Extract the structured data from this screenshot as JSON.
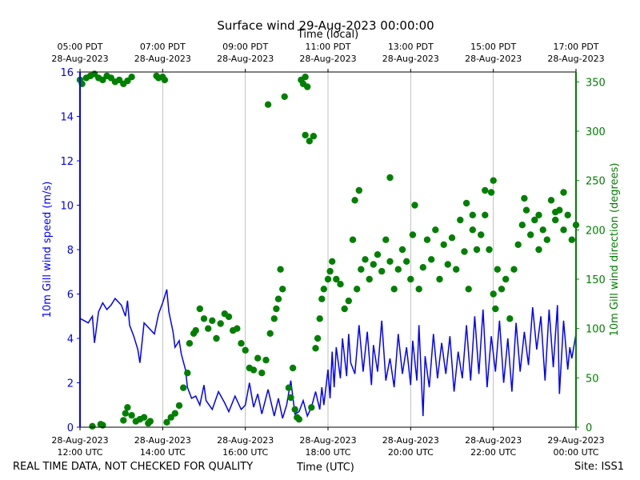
{
  "chart_data": {
    "type": "line+scatter",
    "title": "Surface wind 29-Aug-2023 00:00:00",
    "top_axis": {
      "label": "Time (local)",
      "ticks": [
        {
          "time": "05:00 PDT",
          "date": "28-Aug-2023"
        },
        {
          "time": "07:00 PDT",
          "date": "28-Aug-2023"
        },
        {
          "time": "09:00 PDT",
          "date": "28-Aug-2023"
        },
        {
          "time": "11:00 PDT",
          "date": "28-Aug-2023"
        },
        {
          "time": "13:00 PDT",
          "date": "28-Aug-2023"
        },
        {
          "time": "15:00 PDT",
          "date": "28-Aug-2023"
        },
        {
          "time": "17:00 PDT",
          "date": "28-Aug-2023"
        }
      ]
    },
    "bottom_axis": {
      "label": "Time (UTC)",
      "xlim_hours_utc": [
        12,
        24
      ],
      "ticks": [
        {
          "date": "28-Aug-2023",
          "time": "12:00 UTC"
        },
        {
          "date": "28-Aug-2023",
          "time": "14:00 UTC"
        },
        {
          "date": "28-Aug-2023",
          "time": "16:00 UTC"
        },
        {
          "date": "28-Aug-2023",
          "time": "18:00 UTC"
        },
        {
          "date": "28-Aug-2023",
          "time": "20:00 UTC"
        },
        {
          "date": "28-Aug-2023",
          "time": "22:00 UTC"
        },
        {
          "date": "29-Aug-2023",
          "time": "00:00 UTC"
        }
      ]
    },
    "left_axis": {
      "label": "10m Gill wind speed (m/s)",
      "ylim": [
        0,
        16
      ],
      "ticks": [
        0,
        2,
        4,
        6,
        8,
        10,
        12,
        14,
        16
      ],
      "color": "#0000ff"
    },
    "right_axis": {
      "label": "10m Gill wind direction (degrees)",
      "ylim": [
        0,
        360
      ],
      "ticks": [
        0,
        50,
        100,
        150,
        200,
        250,
        300,
        350
      ],
      "color": "#008000"
    },
    "grid": "vertical",
    "series": [
      {
        "name": "wind speed",
        "axis": "left",
        "style": "line",
        "points": [
          [
            12.0,
            4.9
          ],
          [
            12.1,
            4.8
          ],
          [
            12.2,
            4.7
          ],
          [
            12.3,
            5.0
          ],
          [
            12.35,
            3.8
          ],
          [
            12.45,
            5.2
          ],
          [
            12.55,
            5.6
          ],
          [
            12.65,
            5.3
          ],
          [
            12.75,
            5.5
          ],
          [
            12.85,
            5.8
          ],
          [
            13.0,
            5.5
          ],
          [
            13.1,
            5.0
          ],
          [
            13.15,
            5.7
          ],
          [
            13.2,
            4.6
          ],
          [
            13.3,
            4.1
          ],
          [
            13.4,
            3.5
          ],
          [
            13.45,
            2.9
          ],
          [
            13.55,
            4.7
          ],
          [
            13.7,
            4.4
          ],
          [
            13.8,
            4.2
          ],
          [
            13.9,
            5.1
          ],
          [
            14.0,
            5.6
          ],
          [
            14.1,
            6.2
          ],
          [
            14.15,
            5.2
          ],
          [
            14.25,
            4.3
          ],
          [
            14.3,
            3.6
          ],
          [
            14.4,
            3.9
          ],
          [
            14.45,
            3.3
          ],
          [
            14.55,
            2.6
          ],
          [
            14.6,
            1.8
          ],
          [
            14.7,
            1.3
          ],
          [
            14.8,
            1.4
          ],
          [
            14.9,
            1.0
          ],
          [
            15.0,
            1.9
          ],
          [
            15.05,
            1.2
          ],
          [
            15.2,
            0.8
          ],
          [
            15.35,
            1.6
          ],
          [
            15.5,
            1.1
          ],
          [
            15.6,
            0.7
          ],
          [
            15.75,
            1.4
          ],
          [
            15.9,
            0.8
          ],
          [
            16.0,
            1.0
          ],
          [
            16.1,
            2.0
          ],
          [
            16.2,
            0.9
          ],
          [
            16.3,
            1.5
          ],
          [
            16.4,
            0.6
          ],
          [
            16.55,
            1.7
          ],
          [
            16.7,
            0.5
          ],
          [
            16.8,
            1.3
          ],
          [
            16.9,
            0.4
          ],
          [
            17.0,
            1.0
          ],
          [
            17.1,
            2.1
          ],
          [
            17.2,
            0.6
          ],
          [
            17.3,
            0.7
          ],
          [
            17.4,
            1.2
          ],
          [
            17.5,
            0.5
          ],
          [
            17.6,
            0.9
          ],
          [
            17.7,
            1.6
          ],
          [
            17.8,
            0.8
          ],
          [
            17.85,
            1.8
          ],
          [
            17.9,
            1.0
          ],
          [
            18.0,
            2.6
          ],
          [
            18.05,
            1.3
          ],
          [
            18.1,
            3.4
          ],
          [
            18.15,
            1.8
          ],
          [
            18.2,
            3.6
          ],
          [
            18.3,
            2.2
          ],
          [
            18.35,
            4.0
          ],
          [
            18.45,
            2.3
          ],
          [
            18.5,
            4.2
          ],
          [
            18.55,
            2.9
          ],
          [
            18.65,
            2.4
          ],
          [
            18.75,
            4.6
          ],
          [
            18.85,
            2.5
          ],
          [
            18.95,
            4.3
          ],
          [
            19.05,
            1.9
          ],
          [
            19.1,
            3.7
          ],
          [
            19.2,
            2.5
          ],
          [
            19.3,
            4.8
          ],
          [
            19.4,
            2.1
          ],
          [
            19.5,
            3.1
          ],
          [
            19.6,
            1.8
          ],
          [
            19.7,
            4.2
          ],
          [
            19.8,
            2.4
          ],
          [
            19.9,
            3.6
          ],
          [
            20.0,
            1.9
          ],
          [
            20.05,
            3.9
          ],
          [
            20.15,
            2.1
          ],
          [
            20.2,
            4.6
          ],
          [
            20.3,
            0.5
          ],
          [
            20.35,
            3.2
          ],
          [
            20.45,
            1.8
          ],
          [
            20.55,
            4.2
          ],
          [
            20.65,
            2.2
          ],
          [
            20.75,
            3.8
          ],
          [
            20.85,
            2.4
          ],
          [
            20.95,
            4.1
          ],
          [
            21.05,
            1.6
          ],
          [
            21.15,
            3.4
          ],
          [
            21.25,
            2.2
          ],
          [
            21.35,
            4.6
          ],
          [
            21.45,
            2.1
          ],
          [
            21.55,
            5.0
          ],
          [
            21.65,
            2.4
          ],
          [
            21.75,
            5.3
          ],
          [
            21.85,
            1.8
          ],
          [
            21.95,
            4.1
          ],
          [
            22.05,
            2.5
          ],
          [
            22.15,
            4.8
          ],
          [
            22.25,
            2.0
          ],
          [
            22.35,
            4.0
          ],
          [
            22.45,
            1.6
          ],
          [
            22.55,
            4.7
          ],
          [
            22.65,
            2.5
          ],
          [
            22.75,
            4.3
          ],
          [
            22.85,
            2.8
          ],
          [
            22.95,
            5.4
          ],
          [
            23.05,
            3.5
          ],
          [
            23.15,
            5.0
          ],
          [
            23.25,
            2.1
          ],
          [
            23.35,
            5.3
          ],
          [
            23.45,
            2.7
          ],
          [
            23.55,
            5.5
          ],
          [
            23.6,
            1.5
          ],
          [
            23.7,
            4.8
          ],
          [
            23.8,
            2.6
          ],
          [
            23.85,
            3.6
          ],
          [
            23.9,
            3.1
          ],
          [
            24.0,
            4.2
          ]
        ]
      },
      {
        "name": "wind direction",
        "axis": "right",
        "style": "scatter",
        "points": [
          [
            12.0,
            352
          ],
          [
            12.05,
            348
          ],
          [
            12.15,
            354
          ],
          [
            12.25,
            356
          ],
          [
            12.35,
            358
          ],
          [
            12.45,
            354
          ],
          [
            12.55,
            352
          ],
          [
            12.65,
            356
          ],
          [
            12.75,
            354
          ],
          [
            12.85,
            350
          ],
          [
            12.95,
            352
          ],
          [
            13.05,
            348
          ],
          [
            13.15,
            351
          ],
          [
            13.25,
            355
          ],
          [
            12.3,
            1
          ],
          [
            12.5,
            3
          ],
          [
            12.55,
            2
          ],
          [
            13.05,
            7
          ],
          [
            13.1,
            14
          ],
          [
            13.15,
            20
          ],
          [
            13.25,
            12
          ],
          [
            13.35,
            6
          ],
          [
            13.45,
            8
          ],
          [
            13.55,
            10
          ],
          [
            13.65,
            4
          ],
          [
            13.7,
            6
          ],
          [
            13.85,
            356
          ],
          [
            13.9,
            354
          ],
          [
            14.0,
            355
          ],
          [
            14.05,
            352
          ],
          [
            14.1,
            5
          ],
          [
            14.2,
            10
          ],
          [
            14.3,
            14
          ],
          [
            14.4,
            22
          ],
          [
            14.5,
            40
          ],
          [
            14.6,
            55
          ],
          [
            14.65,
            85
          ],
          [
            14.75,
            95
          ],
          [
            14.8,
            98
          ],
          [
            14.9,
            120
          ],
          [
            15.0,
            110
          ],
          [
            15.1,
            100
          ],
          [
            15.2,
            108
          ],
          [
            15.3,
            90
          ],
          [
            15.4,
            105
          ],
          [
            15.5,
            115
          ],
          [
            15.6,
            112
          ],
          [
            15.7,
            98
          ],
          [
            15.8,
            100
          ],
          [
            15.9,
            85
          ],
          [
            16.0,
            78
          ],
          [
            16.1,
            60
          ],
          [
            16.2,
            58
          ],
          [
            16.3,
            70
          ],
          [
            16.4,
            55
          ],
          [
            16.5,
            68
          ],
          [
            16.55,
            327
          ],
          [
            16.6,
            95
          ],
          [
            16.7,
            110
          ],
          [
            16.75,
            120
          ],
          [
            16.8,
            130
          ],
          [
            16.85,
            160
          ],
          [
            16.9,
            140
          ],
          [
            16.95,
            335
          ],
          [
            17.05,
            40
          ],
          [
            17.1,
            30
          ],
          [
            17.15,
            60
          ],
          [
            17.2,
            18
          ],
          [
            17.25,
            10
          ],
          [
            17.3,
            8
          ],
          [
            17.35,
            352
          ],
          [
            17.4,
            348
          ],
          [
            17.45,
            355
          ],
          [
            17.5,
            345
          ],
          [
            17.45,
            296
          ],
          [
            17.55,
            290
          ],
          [
            17.6,
            20
          ],
          [
            17.65,
            295
          ],
          [
            17.7,
            80
          ],
          [
            17.75,
            90
          ],
          [
            17.8,
            110
          ],
          [
            17.85,
            130
          ],
          [
            17.9,
            140
          ],
          [
            18.0,
            150
          ],
          [
            18.05,
            158
          ],
          [
            18.1,
            168
          ],
          [
            18.2,
            150
          ],
          [
            18.3,
            145
          ],
          [
            18.4,
            120
          ],
          [
            18.5,
            128
          ],
          [
            18.6,
            190
          ],
          [
            18.7,
            140
          ],
          [
            18.8,
            160
          ],
          [
            18.9,
            170
          ],
          [
            19.0,
            150
          ],
          [
            19.1,
            165
          ],
          [
            19.2,
            175
          ],
          [
            19.3,
            158
          ],
          [
            19.4,
            190
          ],
          [
            19.5,
            168
          ],
          [
            19.6,
            140
          ],
          [
            19.7,
            160
          ],
          [
            19.8,
            180
          ],
          [
            19.9,
            168
          ],
          [
            20.0,
            150
          ],
          [
            20.05,
            195
          ],
          [
            20.1,
            225
          ],
          [
            20.2,
            140
          ],
          [
            20.3,
            162
          ],
          [
            20.4,
            190
          ],
          [
            20.5,
            170
          ],
          [
            20.6,
            200
          ],
          [
            20.7,
            150
          ],
          [
            20.8,
            185
          ],
          [
            20.9,
            165
          ],
          [
            21.0,
            192
          ],
          [
            21.1,
            160
          ],
          [
            21.2,
            210
          ],
          [
            21.3,
            178
          ],
          [
            21.4,
            140
          ],
          [
            21.5,
            200
          ],
          [
            21.6,
            180
          ],
          [
            21.7,
            195
          ],
          [
            21.8,
            215
          ],
          [
            21.9,
            180
          ],
          [
            22.0,
            135
          ],
          [
            22.05,
            120
          ],
          [
            22.1,
            160
          ],
          [
            22.2,
            140
          ],
          [
            22.3,
            150
          ],
          [
            22.4,
            110
          ],
          [
            22.5,
            160
          ],
          [
            22.6,
            185
          ],
          [
            22.7,
            205
          ],
          [
            22.8,
            220
          ],
          [
            22.9,
            195
          ],
          [
            23.0,
            210
          ],
          [
            23.1,
            180
          ],
          [
            23.2,
            200
          ],
          [
            23.3,
            190
          ],
          [
            23.4,
            230
          ],
          [
            23.5,
            210
          ],
          [
            23.6,
            220
          ],
          [
            23.7,
            200
          ],
          [
            23.8,
            215
          ],
          [
            23.9,
            190
          ],
          [
            24.0,
            205
          ],
          [
            21.35,
            227
          ],
          [
            21.5,
            215
          ],
          [
            21.8,
            240
          ],
          [
            21.95,
            238
          ],
          [
            22.0,
            250
          ],
          [
            22.75,
            232
          ],
          [
            23.1,
            215
          ],
          [
            23.5,
            218
          ],
          [
            23.7,
            238
          ],
          [
            19.5,
            253
          ],
          [
            18.65,
            230
          ],
          [
            18.75,
            240
          ]
        ]
      }
    ]
  },
  "footer": {
    "left": "REAL TIME DATA, NOT CHECKED FOR QUALITY",
    "center": "Time (UTC)",
    "right": "Site: ISS1"
  },
  "colors": {
    "speed": "#0000ff",
    "direction": "#008000",
    "grid": "#b0b0b0",
    "axis": "#000000"
  }
}
